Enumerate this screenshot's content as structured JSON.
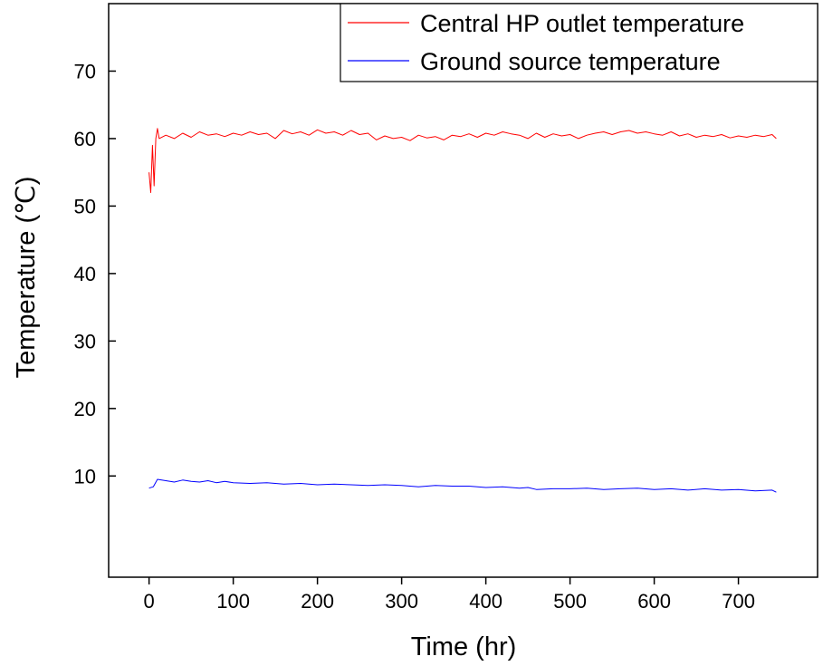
{
  "chart_data": {
    "type": "line",
    "title": "",
    "xlabel": "Time (hr)",
    "ylabel": "Temperature (℃)",
    "xlim": [
      -48,
      794
    ],
    "ylim": [
      -5,
      80
    ],
    "xticks": [
      0,
      100,
      200,
      300,
      400,
      500,
      600,
      700
    ],
    "yticks": [
      10,
      20,
      30,
      40,
      50,
      60,
      70
    ],
    "legend_position": "top-right",
    "grid": false,
    "series": [
      {
        "name": "Central HP outlet temperature",
        "color": "#ff0000",
        "x": [
          0,
          2,
          4,
          6,
          8,
          10,
          12,
          20,
          30,
          40,
          50,
          60,
          70,
          80,
          90,
          100,
          110,
          120,
          130,
          140,
          150,
          160,
          170,
          180,
          190,
          200,
          210,
          220,
          230,
          240,
          250,
          260,
          270,
          280,
          290,
          300,
          310,
          320,
          330,
          340,
          350,
          360,
          370,
          380,
          390,
          400,
          410,
          420,
          430,
          440,
          450,
          460,
          470,
          480,
          490,
          500,
          510,
          520,
          530,
          540,
          550,
          560,
          570,
          580,
          590,
          600,
          610,
          620,
          630,
          640,
          650,
          660,
          670,
          680,
          690,
          700,
          710,
          720,
          730,
          740,
          745
        ],
        "y": [
          55,
          52,
          59,
          53,
          60,
          61.5,
          60,
          60.5,
          60,
          60.8,
          60.2,
          61,
          60.5,
          60.7,
          60.3,
          60.8,
          60.5,
          61,
          60.6,
          60.8,
          60,
          61.2,
          60.7,
          61,
          60.5,
          61.3,
          60.8,
          61,
          60.5,
          61.2,
          60.6,
          60.8,
          59.8,
          60.4,
          60,
          60.2,
          59.7,
          60.5,
          60.1,
          60.3,
          59.8,
          60.5,
          60.3,
          60.7,
          60.2,
          60.8,
          60.5,
          61,
          60.7,
          60.5,
          60,
          60.8,
          60.2,
          60.7,
          60.4,
          60.6,
          60,
          60.5,
          60.8,
          61,
          60.6,
          61,
          61.2,
          60.8,
          61,
          60.7,
          60.5,
          61,
          60.4,
          60.7,
          60.2,
          60.5,
          60.3,
          60.6,
          60.1,
          60.4,
          60.2,
          60.5,
          60.3,
          60.6,
          60
        ]
      },
      {
        "name": "Ground source temperature",
        "color": "#0000ff",
        "x": [
          0,
          5,
          10,
          20,
          30,
          40,
          50,
          60,
          70,
          80,
          90,
          100,
          120,
          140,
          160,
          180,
          200,
          220,
          240,
          260,
          280,
          300,
          320,
          340,
          360,
          380,
          400,
          420,
          440,
          450,
          460,
          480,
          500,
          520,
          540,
          560,
          580,
          600,
          620,
          640,
          660,
          680,
          700,
          720,
          740,
          745
        ],
        "y": [
          8.2,
          8.4,
          9.5,
          9.3,
          9.1,
          9.4,
          9.2,
          9.1,
          9.3,
          9,
          9.2,
          9,
          8.9,
          9,
          8.8,
          8.9,
          8.7,
          8.8,
          8.7,
          8.6,
          8.7,
          8.6,
          8.4,
          8.6,
          8.5,
          8.5,
          8.3,
          8.4,
          8.2,
          8.3,
          8,
          8.1,
          8.1,
          8.2,
          8,
          8.1,
          8.2,
          8,
          8.1,
          7.9,
          8.1,
          7.9,
          8,
          7.8,
          7.9,
          7.6
        ]
      }
    ]
  }
}
